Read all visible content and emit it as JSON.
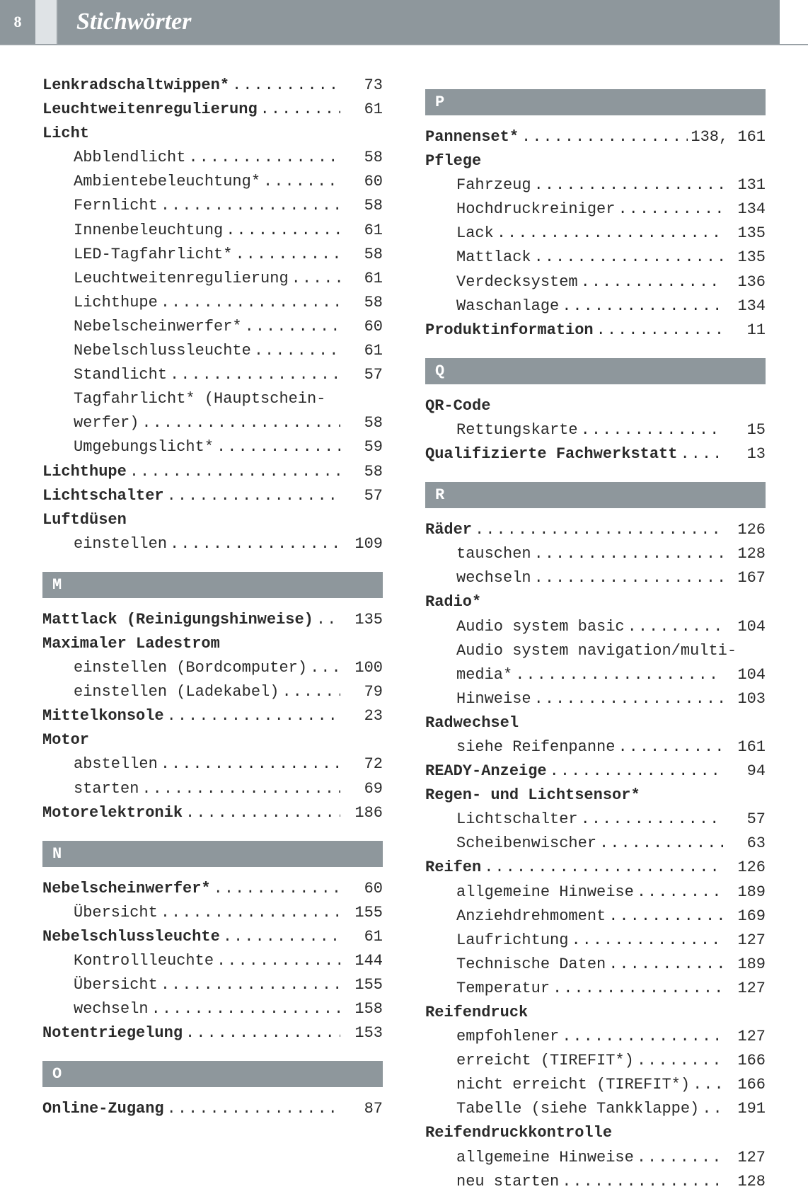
{
  "meta": {
    "page_number": "8",
    "title": "Stichwörter",
    "colors": {
      "bar_bg": "#8e979c",
      "bar_text": "#ffffff",
      "text": "#2a2a2a",
      "divider": "#9aa1a6",
      "page_bg": "#ffffff"
    },
    "fonts": {
      "body": "Courier New, monospace",
      "title": "Georgia, serif italic",
      "body_size_pt": 16,
      "title_size_pt": 26
    }
  },
  "left": [
    {
      "type": "entry",
      "label": "Lenkradschaltwippen*",
      "page": "73"
    },
    {
      "type": "entry",
      "label": "Leuchtweitenregulierung",
      "page": "61"
    },
    {
      "type": "heading",
      "label": "Licht"
    },
    {
      "type": "sub",
      "label": "Abblendlicht",
      "page": "58"
    },
    {
      "type": "sub",
      "label": "Ambientebeleuchtung*",
      "page": "60"
    },
    {
      "type": "sub",
      "label": "Fernlicht",
      "page": "58"
    },
    {
      "type": "sub",
      "label": "Innenbeleuchtung",
      "page": "61"
    },
    {
      "type": "sub",
      "label": "LED-Tagfahrlicht*",
      "page": "58"
    },
    {
      "type": "sub",
      "label": "Leuchtweitenregulierung",
      "page": "61"
    },
    {
      "type": "sub",
      "label": "Lichthupe",
      "page": "58"
    },
    {
      "type": "sub",
      "label": "Nebelscheinwerfer*",
      "page": "60"
    },
    {
      "type": "sub",
      "label": "Nebelschlussleuchte",
      "page": "61"
    },
    {
      "type": "sub",
      "label": "Standlicht",
      "page": "57"
    },
    {
      "type": "subnobreak",
      "label": "Tagfahrlicht* (Hauptschein-"
    },
    {
      "type": "sub",
      "label": "werfer)",
      "page": "58"
    },
    {
      "type": "sub",
      "label": "Umgebungslicht*",
      "page": "59"
    },
    {
      "type": "entry",
      "label": "Lichthupe",
      "page": "58"
    },
    {
      "type": "entry",
      "label": "Lichtschalter",
      "page": "57"
    },
    {
      "type": "heading",
      "label": "Luftdüsen"
    },
    {
      "type": "sub",
      "label": "einstellen",
      "page": "109"
    },
    {
      "type": "letter",
      "label": "M"
    },
    {
      "type": "entry",
      "label": "Mattlack (Reinigungshinweise)",
      "page": "135"
    },
    {
      "type": "heading",
      "label": "Maximaler Ladestrom"
    },
    {
      "type": "sub",
      "label": "einstellen (Bordcomputer)",
      "page": "100"
    },
    {
      "type": "sub",
      "label": "einstellen (Ladekabel)",
      "page": "79"
    },
    {
      "type": "entry",
      "label": "Mittelkonsole",
      "page": "23"
    },
    {
      "type": "heading",
      "label": "Motor"
    },
    {
      "type": "sub",
      "label": "abstellen",
      "page": "72"
    },
    {
      "type": "sub",
      "label": "starten",
      "page": "69"
    },
    {
      "type": "entry",
      "label": "Motorelektronik",
      "page": "186"
    },
    {
      "type": "letter",
      "label": "N"
    },
    {
      "type": "entry",
      "label": "Nebelscheinwerfer*",
      "page": "60"
    },
    {
      "type": "sub",
      "label": "Übersicht",
      "page": "155"
    },
    {
      "type": "entry",
      "label": "Nebelschlussleuchte",
      "page": "61"
    },
    {
      "type": "sub",
      "label": "Kontrollleuchte",
      "page": "144"
    },
    {
      "type": "sub",
      "label": "Übersicht",
      "page": "155"
    },
    {
      "type": "sub",
      "label": "wechseln",
      "page": "158"
    },
    {
      "type": "entry",
      "label": "Notentriegelung",
      "page": "153"
    },
    {
      "type": "letter",
      "label": "O"
    },
    {
      "type": "entry",
      "label": "Online-Zugang",
      "page": "87"
    }
  ],
  "right": [
    {
      "type": "letter",
      "label": "P"
    },
    {
      "type": "entrywide",
      "label": "Pannenset*",
      "page": "138, 161"
    },
    {
      "type": "heading",
      "label": "Pflege"
    },
    {
      "type": "sub",
      "label": "Fahrzeug",
      "page": "131"
    },
    {
      "type": "sub",
      "label": "Hochdruckreiniger",
      "page": "134"
    },
    {
      "type": "sub",
      "label": "Lack",
      "page": "135"
    },
    {
      "type": "sub",
      "label": "Mattlack",
      "page": "135"
    },
    {
      "type": "sub",
      "label": "Verdecksystem",
      "page": "136"
    },
    {
      "type": "sub",
      "label": "Waschanlage",
      "page": "134"
    },
    {
      "type": "entry",
      "label": "Produktinformation",
      "page": "11"
    },
    {
      "type": "letter",
      "label": "Q"
    },
    {
      "type": "heading",
      "label": "QR-Code"
    },
    {
      "type": "sub",
      "label": "Rettungskarte",
      "page": "15"
    },
    {
      "type": "entry",
      "label": "Qualifizierte Fachwerkstatt",
      "page": "13"
    },
    {
      "type": "letter",
      "label": "R"
    },
    {
      "type": "entry",
      "label": "Räder",
      "page": "126"
    },
    {
      "type": "sub",
      "label": "tauschen",
      "page": "128"
    },
    {
      "type": "sub",
      "label": "wechseln",
      "page": "167"
    },
    {
      "type": "heading",
      "label": "Radio*"
    },
    {
      "type": "sub",
      "label": "Audio system basic",
      "page": "104"
    },
    {
      "type": "subnobreak",
      "label": "Audio system navigation/multi-"
    },
    {
      "type": "sub",
      "label": "media*",
      "page": "104"
    },
    {
      "type": "sub",
      "label": "Hinweise",
      "page": "103"
    },
    {
      "type": "heading",
      "label": "Radwechsel"
    },
    {
      "type": "sub",
      "label": "siehe Reifenpanne",
      "page": "161"
    },
    {
      "type": "entry",
      "label": "READY-Anzeige",
      "page": "94"
    },
    {
      "type": "heading",
      "label": "Regen- und Lichtsensor*"
    },
    {
      "type": "sub",
      "label": "Lichtschalter",
      "page": "57"
    },
    {
      "type": "sub",
      "label": "Scheibenwischer",
      "page": "63"
    },
    {
      "type": "entry",
      "label": "Reifen",
      "page": "126"
    },
    {
      "type": "sub",
      "label": "allgemeine Hinweise",
      "page": "189"
    },
    {
      "type": "sub",
      "label": "Anziehdrehmoment",
      "page": "169"
    },
    {
      "type": "sub",
      "label": "Laufrichtung",
      "page": "127"
    },
    {
      "type": "sub",
      "label": "Technische Daten",
      "page": "189"
    },
    {
      "type": "sub",
      "label": "Temperatur",
      "page": "127"
    },
    {
      "type": "heading",
      "label": "Reifendruck"
    },
    {
      "type": "sub",
      "label": "empfohlener",
      "page": "127"
    },
    {
      "type": "sub",
      "label": "erreicht (TIREFIT*)",
      "page": "166"
    },
    {
      "type": "sub",
      "label": "nicht erreicht (TIREFIT*)",
      "page": "166"
    },
    {
      "type": "sub",
      "label": "Tabelle (siehe Tankklappe)",
      "page": "191"
    },
    {
      "type": "heading",
      "label": "Reifendruckkontrolle"
    },
    {
      "type": "sub",
      "label": "allgemeine Hinweise",
      "page": "127"
    },
    {
      "type": "sub",
      "label": "neu starten",
      "page": "128"
    }
  ]
}
